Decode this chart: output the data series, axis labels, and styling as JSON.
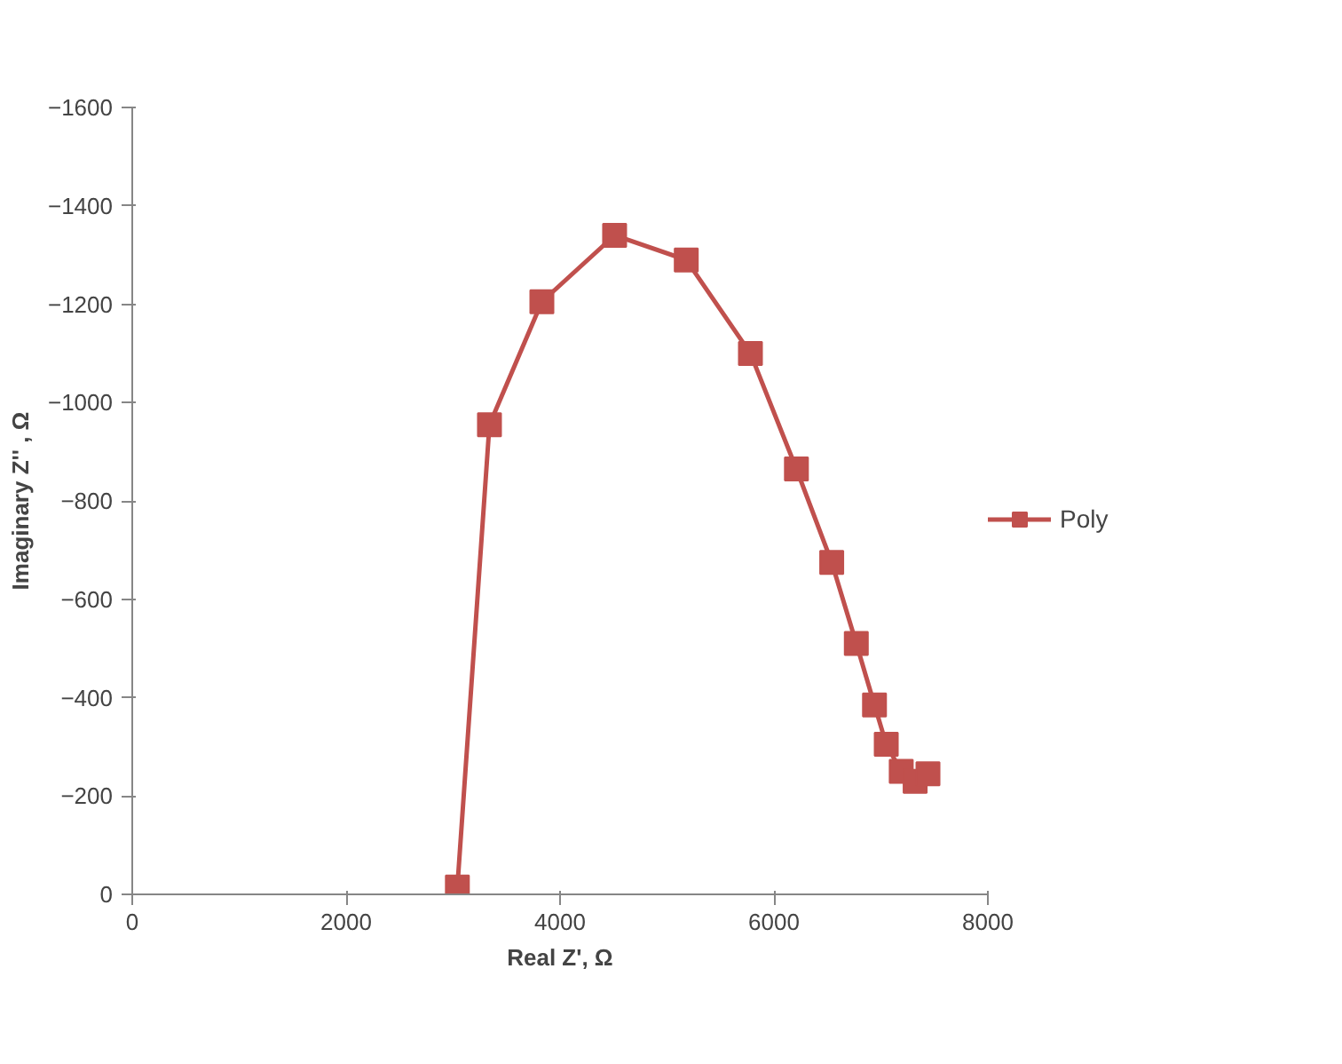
{
  "chart_data": {
    "type": "line",
    "xlabel": "Real Z', Ω",
    "ylabel": "Imaginary Z'' , Ω",
    "x": [
      3040,
      3340,
      3830,
      4510,
      5180,
      5780,
      6210,
      6540,
      6770,
      6940,
      7050,
      7190,
      7320,
      7440
    ],
    "series": [
      {
        "name": "Poly",
        "color": "#c0504d",
        "values": [
          -15,
          -955,
          -1205,
          -1340,
          -1290,
          -1100,
          -865,
          -675,
          -510,
          -385,
          -305,
          -250,
          -230,
          -245
        ]
      }
    ],
    "xlim": [
      0,
      8000
    ],
    "xticks": [
      0,
      2000,
      4000,
      6000,
      8000
    ],
    "ylim": [
      0,
      -1600
    ],
    "yticks": [
      0,
      -200,
      -400,
      -600,
      -800,
      -1000,
      -1200,
      -1400,
      -1600
    ],
    "grid": false,
    "legend": "right",
    "marker": "square",
    "line_style": "solid"
  }
}
